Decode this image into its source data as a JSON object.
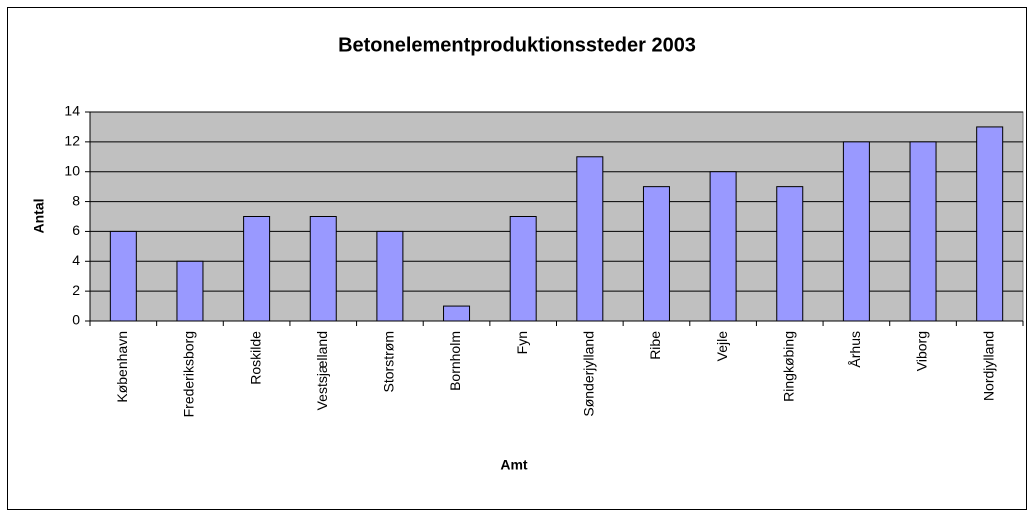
{
  "chart_data": {
    "type": "bar",
    "title": "Betonelementproduktionssteder 2003",
    "x_label": "Amt",
    "y_label": "Antal",
    "categories": [
      "København",
      "Frederiksborg",
      "Roskilde",
      "Vestsjælland",
      "Storstrøm",
      "Bornholm",
      "Fyn",
      "Sønderjylland",
      "Ribe",
      "Vejle",
      "Ringkøbing",
      "Århus",
      "Viborg",
      "Nordjylland"
    ],
    "values": [
      6,
      4,
      7,
      7,
      6,
      1,
      7,
      11,
      9,
      10,
      9,
      12,
      12,
      13
    ],
    "color": "#9999ff",
    "ylim": [
      0,
      14
    ],
    "yticks": [
      0,
      2,
      4,
      6,
      8,
      10,
      12,
      14
    ],
    "grid": true
  }
}
